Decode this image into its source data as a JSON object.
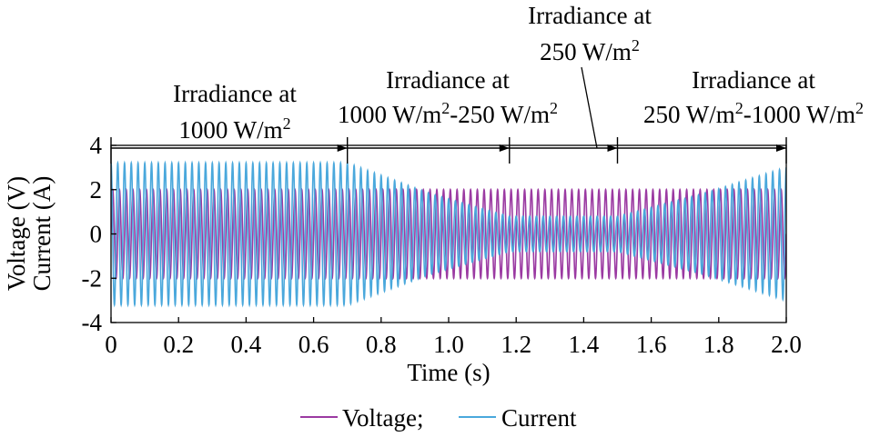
{
  "chart_data": {
    "type": "line",
    "xlabel": "Time (s)",
    "ylabel_lines": [
      "Voltage (V)",
      "Current (A)"
    ],
    "xlim": [
      0,
      2.0
    ],
    "ylim": [
      -4,
      4
    ],
    "x_ticks": [
      0,
      0.2,
      0.4,
      0.6,
      0.8,
      1.0,
      1.2,
      1.4,
      1.6,
      1.8,
      2.0
    ],
    "x_tick_labels": [
      "0",
      "0.2",
      "0.4",
      "0.6",
      "0.8",
      "1.0",
      "1.2",
      "1.4",
      "1.6",
      "1.8",
      "2.0"
    ],
    "y_ticks": [
      4,
      2,
      0,
      -2,
      -4
    ],
    "y_tick_labels": [
      "4",
      "2",
      "0",
      "-2",
      "-4"
    ],
    "oscillation_hz": 50,
    "series": [
      {
        "name": "Voltage",
        "color": "#9b3aa2",
        "envelope": {
          "t": [
            0,
            0.7,
            0.95,
            1.75,
            2.0
          ],
          "amplitude": [
            2.0,
            2.0,
            2.0,
            2.0,
            2.0
          ]
        }
      },
      {
        "name": "Current",
        "color": "#4aa8dc",
        "envelope": {
          "t": [
            0,
            0.7,
            0.95,
            1.18,
            1.5,
            1.75,
            2.0
          ],
          "amplitude": [
            3.2,
            3.2,
            1.8,
            0.8,
            0.8,
            1.8,
            3.0
          ]
        }
      }
    ],
    "legend": {
      "position": "bottom-center",
      "items": [
        {
          "label": "Voltage;",
          "color": "#9b3aa2"
        },
        {
          "label": "Current",
          "color": "#4aa8dc"
        }
      ]
    },
    "segment_markers_time": [
      0,
      0.7,
      1.18,
      1.5,
      2.0
    ],
    "annotations": [
      {
        "line1": "Irradiance at",
        "line2_parts": [
          "1000 W/m",
          "2",
          ""
        ]
      },
      {
        "line1": "Irradiance at",
        "line2_parts": [
          "1000 W/m",
          "2",
          "-250 W/m",
          "2",
          ""
        ]
      },
      {
        "line1": "Irradiance at",
        "line2_parts": [
          "250 W/m",
          "2",
          ""
        ]
      },
      {
        "line1": "Irradiance at",
        "line2_parts": [
          "250 W/m",
          "2",
          "-1000 W/m",
          "2",
          ""
        ]
      }
    ]
  }
}
